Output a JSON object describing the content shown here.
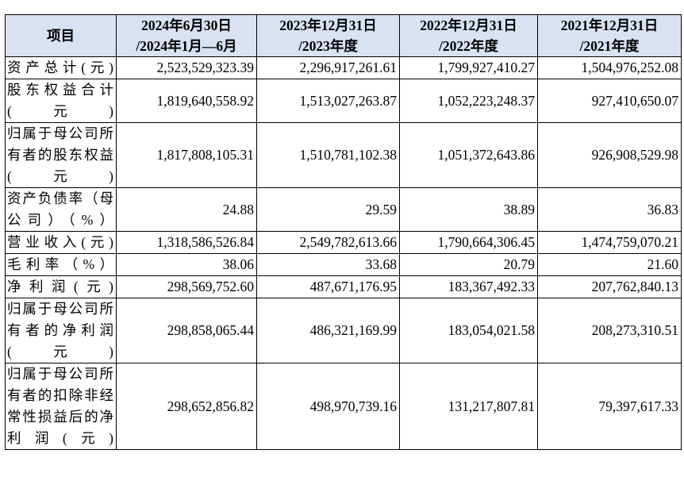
{
  "header": {
    "item_label": "项目",
    "columns": [
      {
        "line1": "2024年6月30日",
        "line2": "/2024年1月—6月"
      },
      {
        "line1": "2023年12月31日",
        "line2": "/2023年度"
      },
      {
        "line1": "2022年12月31日",
        "line2": "/2022年度"
      },
      {
        "line1": "2021年12月31日",
        "line2": "/2021年度"
      }
    ]
  },
  "rows": [
    {
      "label": "资产总计(元)",
      "values": [
        "2,523,529,323.39",
        "2,296,917,261.61",
        "1,799,927,410.27",
        "1,504,976,252.08"
      ]
    },
    {
      "label": "股东权益合计(元)",
      "values": [
        "1,819,640,558.92",
        "1,513,027,263.87",
        "1,052,223,248.37",
        "927,410,650.07"
      ]
    },
    {
      "label": "归属于母公司所有者的股东权益(元)",
      "values": [
        "1,817,808,105.31",
        "1,510,781,102.38",
        "1,051,372,643.86",
        "926,908,529.98"
      ]
    },
    {
      "label": "资产负债率（母公司）（%）",
      "values": [
        "24.88",
        "29.59",
        "38.89",
        "36.83"
      ]
    },
    {
      "label": "营业收入(元)",
      "values": [
        "1,318,586,526.84",
        "2,549,782,613.66",
        "1,790,664,306.45",
        "1,474,759,070.21"
      ]
    },
    {
      "label": "毛利率（%）",
      "values": [
        "38.06",
        "33.68",
        "20.79",
        "21.60"
      ]
    },
    {
      "label": "净利润(元)",
      "values": [
        "298,569,752.60",
        "487,671,176.95",
        "183,367,492.33",
        "207,762,840.13"
      ]
    },
    {
      "label": "归属于母公司所有者的净利润(元)",
      "values": [
        "298,858,065.44",
        "486,321,169.99",
        "183,054,021.58",
        "208,273,310.51"
      ]
    },
    {
      "label": "归属于母公司所有者的扣除非经常性损益后的净利润(元)",
      "values": [
        "298,652,856.82",
        "498,970,739.16",
        "131,217,807.81",
        "79,397,617.33"
      ]
    }
  ]
}
